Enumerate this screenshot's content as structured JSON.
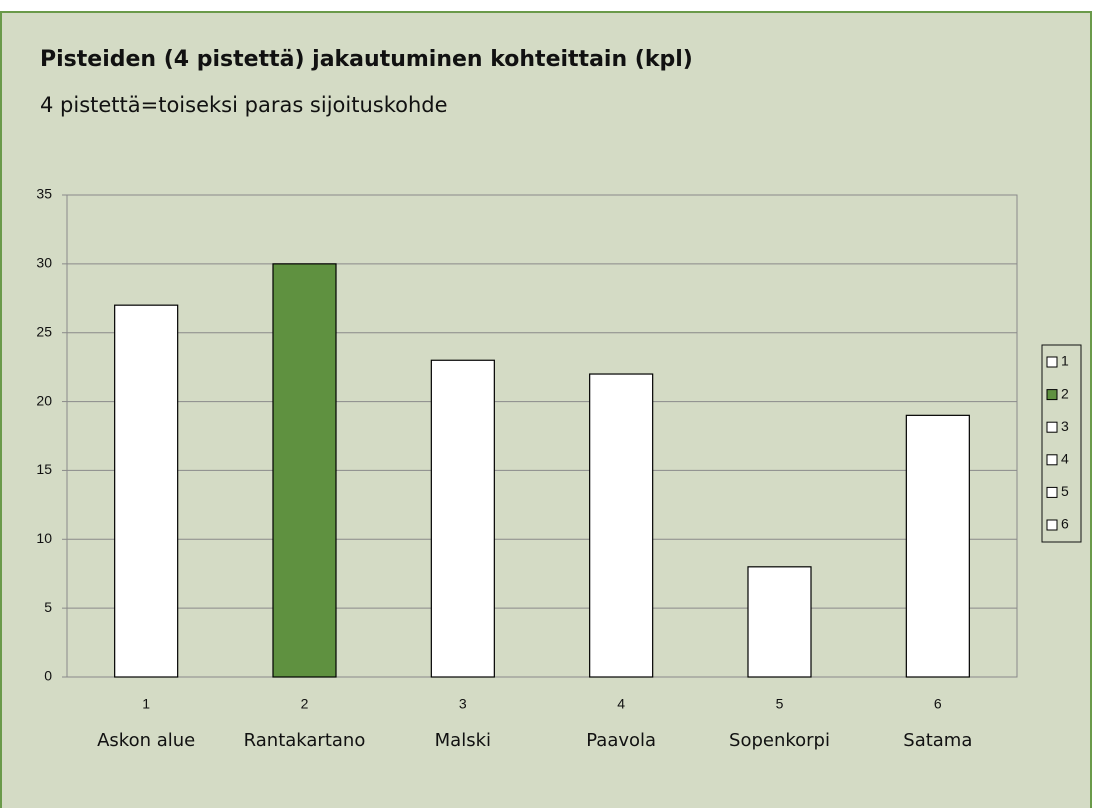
{
  "chart_data": {
    "type": "bar",
    "title": "Pisteiden (4 pistettä) jakautuminen kohteittain (kpl)",
    "subtitle": "4 pistettä=toiseksi paras sijoituskohde",
    "categories": [
      "1",
      "2",
      "3",
      "4",
      "5",
      "6"
    ],
    "category_names": [
      "Askon alue",
      "Rantakartano",
      "Malski",
      "Paavola",
      "Sopenkorpi",
      "Satama"
    ],
    "values": [
      27,
      30,
      23,
      22,
      8,
      19
    ],
    "colors": [
      "#ffffff",
      "#5f9140",
      "#ffffff",
      "#ffffff",
      "#ffffff",
      "#ffffff"
    ],
    "ylim": [
      0,
      35
    ],
    "yticks": [
      0,
      5,
      10,
      15,
      20,
      25,
      30,
      35
    ],
    "grid": true,
    "legend": "right"
  }
}
